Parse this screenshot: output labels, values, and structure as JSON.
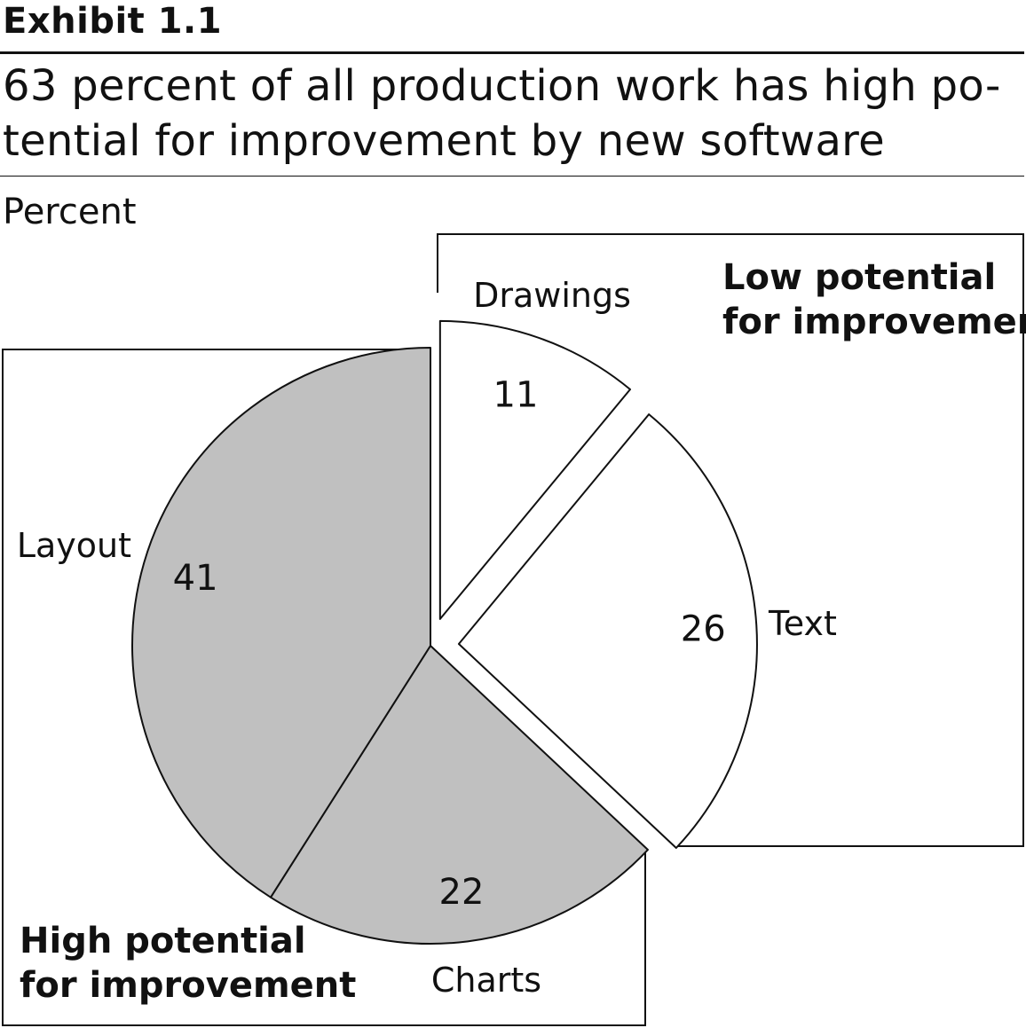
{
  "exhibit": "Exhibit 1.1",
  "unit_label": "Percent",
  "chart_data": {
    "type": "pie",
    "title": "63 percent of all production work has high po-\ntential for improvement by new software",
    "slices": [
      {
        "label": "Drawings",
        "value": 11,
        "group": "low"
      },
      {
        "label": "Text",
        "value": 26,
        "group": "low"
      },
      {
        "label": "Charts",
        "value": 22,
        "group": "high"
      },
      {
        "label": "Layout",
        "value": 41,
        "group": "high"
      }
    ],
    "groups": [
      {
        "id": "low",
        "label_lines": [
          "Low potential",
          "for improvement"
        ],
        "fill": "#ffffff"
      },
      {
        "id": "high",
        "label_lines": [
          "High potential",
          "for improvement"
        ],
        "fill": "#c0c0c0"
      }
    ]
  }
}
